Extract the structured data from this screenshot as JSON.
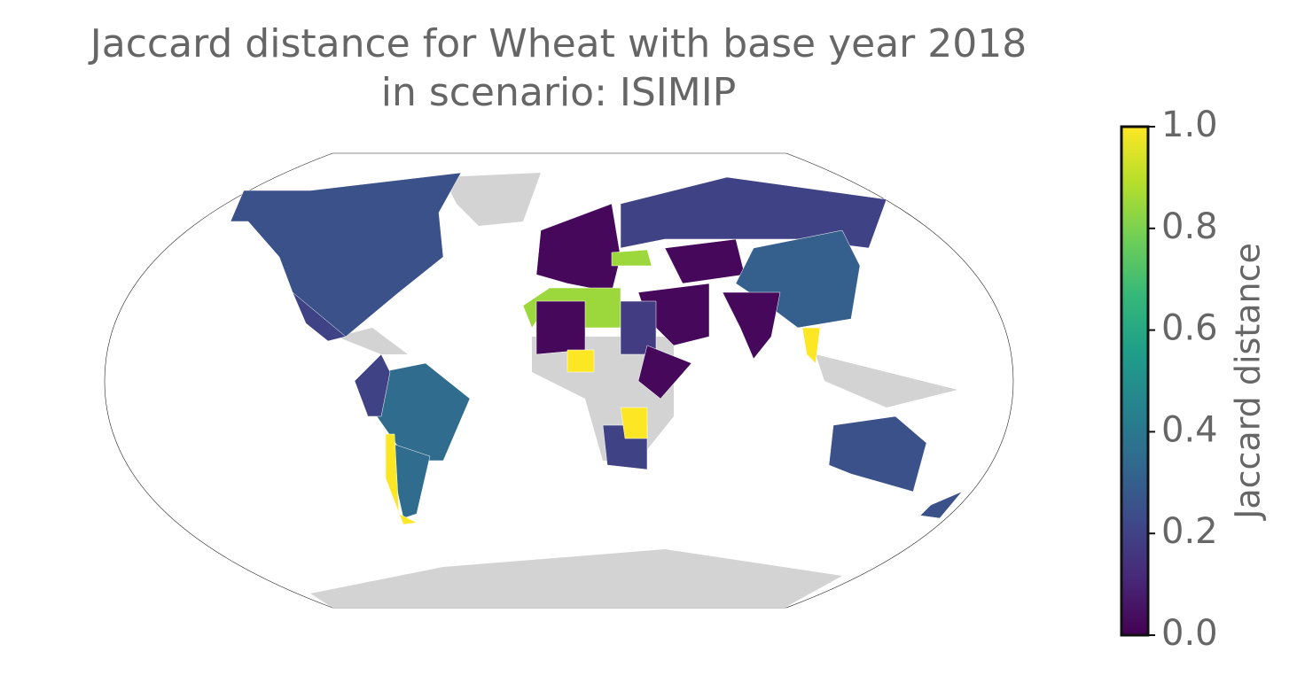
{
  "chart_data": {
    "type": "choropleth",
    "title": [
      "Jaccard distance for Wheat with base year 2018",
      "in scenario: ISIMIP"
    ],
    "colorbar_label": "Jaccard distance",
    "colormap": "viridis",
    "clim": [
      0,
      1
    ],
    "cticks": [
      {
        "value": 0,
        "label": "0.0"
      },
      0.2,
      0.4,
      0.6,
      0.8,
      {
        "value": 1,
        "label": "1.0"
      }
    ],
    "values": [
      0.25,
      0.2,
      0.35,
      0.35,
      1,
      0.2,
      0.02,
      0.85,
      0.2,
      0.02,
      0.3,
      0.02,
      0.02,
      0.85,
      0.02,
      0.18,
      1,
      0.2,
      0.02,
      1,
      1,
      0.25,
      0.25
    ]
  }
}
